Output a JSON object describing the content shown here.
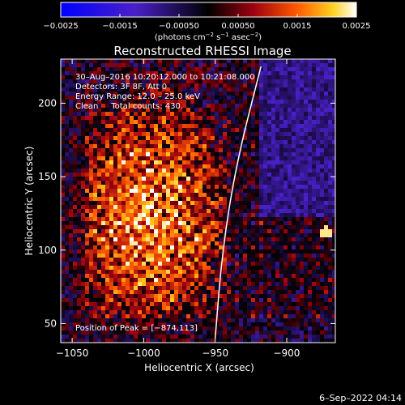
{
  "chart_data": {
    "type": "heatmap",
    "title": "Reconstructed RHESSI Image",
    "xlabel": "Heliocentric X (arcsec)",
    "ylabel": "Heliocentric Y (arcsec)",
    "xlim": [
      -1058,
      -866
    ],
    "ylim": [
      37,
      230
    ],
    "x_ticks": [
      {
        "value": -1050,
        "label": "−1050"
      },
      {
        "value": -1000,
        "label": "−1000"
      },
      {
        "value": -950,
        "label": "−950"
      },
      {
        "value": -900,
        "label": "−900"
      }
    ],
    "y_ticks": [
      {
        "value": 50,
        "label": "50"
      },
      {
        "value": 100,
        "label": "100"
      },
      {
        "value": 150,
        "label": "150"
      },
      {
        "value": 200,
        "label": "200"
      }
    ],
    "colorbar": {
      "range": [
        -0.0025,
        0.0025
      ],
      "ticks": [
        {
          "value": -0.0025,
          "label": "−0.0025"
        },
        {
          "value": -0.0015,
          "label": "−0.0015"
        },
        {
          "value": -0.0005,
          "label": "−0.00050"
        },
        {
          "value": 0.0005,
          "label": "0.00050"
        },
        {
          "value": 0.0015,
          "label": "0.0015"
        },
        {
          "value": 0.0025,
          "label": "0.0025"
        }
      ],
      "unit_label": {
        "base": "(photons cm",
        "sup1": "−2",
        "mid1": " s",
        "sup2": "−1",
        "mid2": " asec",
        "sup3": "−2",
        "end": ")"
      }
    },
    "annotations": [
      "30–Aug–2016 10:20:12.000 to 10:21:08.000",
      "Detectors: 3F 8F, Att 0",
      "Energy Range: 12.0 – 25.0 keV",
      "Clean     Total counts: 430."
    ],
    "peak_label": "Position of Peak = [−874,113]",
    "peak": [
      -874,
      113
    ],
    "limb_curve": [
      [
        -950,
        40
      ],
      [
        -945,
        100
      ],
      [
        -935,
        160
      ],
      [
        -918,
        225
      ]
    ]
  },
  "footer_date": "6–Sep–2022 04:14"
}
